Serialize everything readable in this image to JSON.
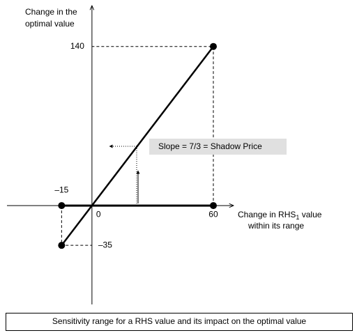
{
  "chart_data": {
    "type": "line",
    "y_label": [
      "Change in the",
      "optimal value"
    ],
    "x_label": {
      "line1": "Change in RHS",
      "subscript": "1",
      "line1_end": " value",
      "line2": "within its range"
    },
    "x": [
      -15,
      60
    ],
    "values": [
      -35,
      140
    ],
    "range_values": [
      0,
      0
    ],
    "color": "#000000",
    "xlim": [
      -42,
      70
    ],
    "ylim": [
      -87,
      176
    ],
    "xticks": [
      {
        "value": -15,
        "label": "–15"
      },
      0,
      60
    ],
    "yticks": [
      {
        "value": -35,
        "label": "–35"
      },
      140
    ],
    "annotation": "Slope = 7/3 = Shadow Price",
    "caption": "Sensitivity range for a RHS value and its impact on the optimal value"
  }
}
